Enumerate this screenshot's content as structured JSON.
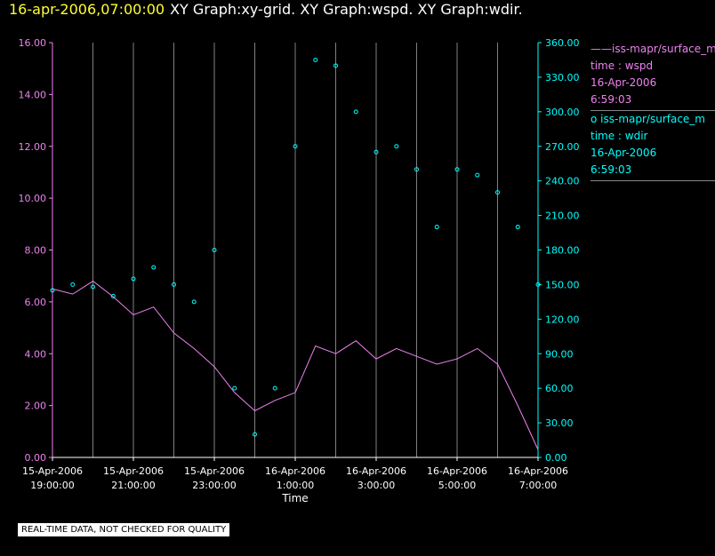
{
  "header": {
    "datetime": "16-apr-2006,07:00:00",
    "title": "XY Graph:xy-grid.  XY Graph:wspd.  XY Graph:wdir."
  },
  "disclaimer": "REAL-TIME DATA, NOT CHECKED FOR QUALITY",
  "legend": [
    {
      "line1": "iss-mapr/surface_m",
      "line2": "time : wspd",
      "line3": "16-Apr-2006",
      "line4": "6:59:03",
      "color": "#ee82ee",
      "marker": "line"
    },
    {
      "line1": "iss-mapr/surface_m",
      "line2": "time : wdir",
      "line3": "16-Apr-2006",
      "line4": "6:59:03",
      "color": "#00ffff",
      "marker": "circle"
    }
  ],
  "chart_data": {
    "type": "line",
    "xlabel": "Time",
    "x_ticks": [
      {
        "line1": "15-Apr-2006",
        "line2": "19:00:00"
      },
      {
        "line1": "15-Apr-2006",
        "line2": "21:00:00"
      },
      {
        "line1": "15-Apr-2006",
        "line2": "23:00:00"
      },
      {
        "line1": "16-Apr-2006",
        "line2": "1:00:00"
      },
      {
        "line1": "16-Apr-2006",
        "line2": "3:00:00"
      },
      {
        "line1": "16-Apr-2006",
        "line2": "5:00:00"
      },
      {
        "line1": "16-Apr-2006",
        "line2": "7:00:00"
      }
    ],
    "xlim": [
      "15-Apr-2006 19:00:00",
      "16-Apr-2006 07:00:00"
    ],
    "y_left": {
      "ylim": [
        0,
        16
      ],
      "ticks": [
        "0.00",
        "2.00",
        "4.00",
        "6.00",
        "8.00",
        "10.00",
        "12.00",
        "14.00",
        "16.00"
      ],
      "color": "#ee82ee"
    },
    "y_right": {
      "ylim": [
        0,
        360
      ],
      "ticks": [
        "0.00",
        "30.00",
        "60.00",
        "90.00",
        "120.00",
        "150.00",
        "180.00",
        "210.00",
        "240.00",
        "270.00",
        "300.00",
        "330.00",
        "360.00"
      ],
      "color": "#00ffff"
    },
    "grid": "vertical",
    "series": [
      {
        "name": "time : wspd",
        "axis": "left",
        "style": "line",
        "color": "#ee82ee",
        "x_hours": [
          0,
          0.5,
          1,
          1.5,
          2,
          2.5,
          3,
          3.5,
          4,
          4.5,
          5,
          5.5,
          6,
          6.5,
          7,
          7.5,
          8,
          8.5,
          9,
          9.5,
          10,
          10.5,
          11,
          11.5,
          12
        ],
        "values": [
          6.5,
          6.3,
          6.8,
          6.2,
          5.5,
          5.8,
          4.8,
          4.2,
          3.5,
          2.5,
          1.8,
          2.2,
          2.5,
          4.3,
          4.0,
          4.5,
          3.8,
          4.2,
          3.9,
          3.6,
          3.8,
          4.2,
          3.6,
          2.0,
          0.3
        ]
      },
      {
        "name": "time : wdir",
        "axis": "right",
        "style": "scatter",
        "color": "#00ffff",
        "x_hours": [
          0,
          0.5,
          1,
          1.5,
          2,
          2.5,
          3,
          3.5,
          4,
          4.5,
          5,
          5.5,
          6,
          6.5,
          7,
          7.5,
          8,
          8.5,
          9,
          9.5,
          10,
          10.5,
          11,
          11.5,
          12
        ],
        "values": [
          145,
          150,
          148,
          140,
          155,
          165,
          150,
          135,
          180,
          60,
          20,
          60,
          270,
          345,
          340,
          300,
          265,
          270,
          250,
          200,
          250,
          245,
          230,
          200,
          150
        ]
      }
    ]
  }
}
